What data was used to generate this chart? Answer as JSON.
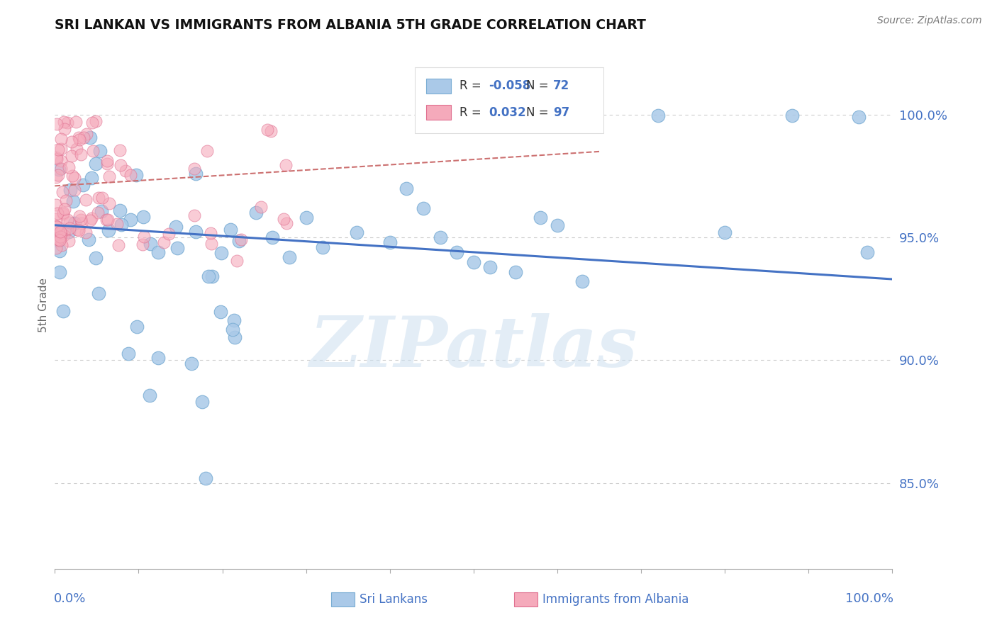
{
  "title": "SRI LANKAN VS IMMIGRANTS FROM ALBANIA 5TH GRADE CORRELATION CHART",
  "source": "Source: ZipAtlas.com",
  "ylabel": "5th Grade",
  "ytick_labels": [
    "85.0%",
    "90.0%",
    "95.0%",
    "100.0%"
  ],
  "ytick_values": [
    0.85,
    0.9,
    0.95,
    1.0
  ],
  "xmin": 0.0,
  "xmax": 1.0,
  "ymin": 0.815,
  "ymax": 1.03,
  "legend_blue_r": "-0.058",
  "legend_blue_n": "72",
  "legend_pink_r": "0.032",
  "legend_pink_n": "97",
  "blue_color": "#aac9e8",
  "blue_edge": "#7aadd4",
  "pink_color": "#f5aabb",
  "pink_edge": "#e07090",
  "trendline_blue_color": "#4472c4",
  "trendline_pink_color": "#cc7070",
  "title_color": "#111111",
  "axis_label_color": "#4472c4",
  "watermark_color": "#ccdff0",
  "grid_color": "#cccccc",
  "spine_color": "#aaaaaa"
}
